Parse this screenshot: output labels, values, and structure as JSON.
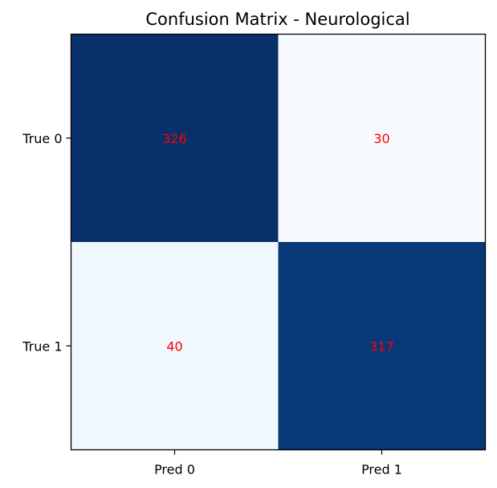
{
  "chart_data": {
    "type": "heatmap",
    "title": "Confusion Matrix - Neurological",
    "xlabel": "",
    "ylabel": "",
    "x_categories": [
      "Pred 0",
      "Pred 1"
    ],
    "y_categories": [
      "True 0",
      "True 1"
    ],
    "values": [
      [
        326,
        30
      ],
      [
        40,
        317
      ]
    ],
    "colormap": "Blues",
    "color_range": [
      30,
      326
    ],
    "annotation_color": "#ff0000",
    "grid": false
  }
}
